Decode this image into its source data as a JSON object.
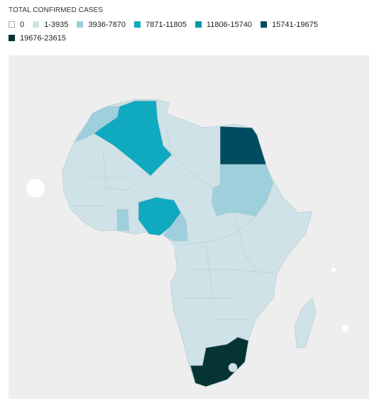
{
  "legend": {
    "title": "TOTAL CONFIRMED CASES",
    "items": [
      {
        "label": "0",
        "color": "#ffffff"
      },
      {
        "label": "1-3935",
        "color": "#cfe2e7"
      },
      {
        "label": "3936-7870",
        "color": "#9dcfdc"
      },
      {
        "label": "7871-11805",
        "color": "#0fa9c0"
      },
      {
        "label": "11806-15740",
        "color": "#0a95a8"
      },
      {
        "label": "15741-19675",
        "color": "#004b5f"
      },
      {
        "label": "19676-23615",
        "color": "#053432"
      }
    ]
  }
}
